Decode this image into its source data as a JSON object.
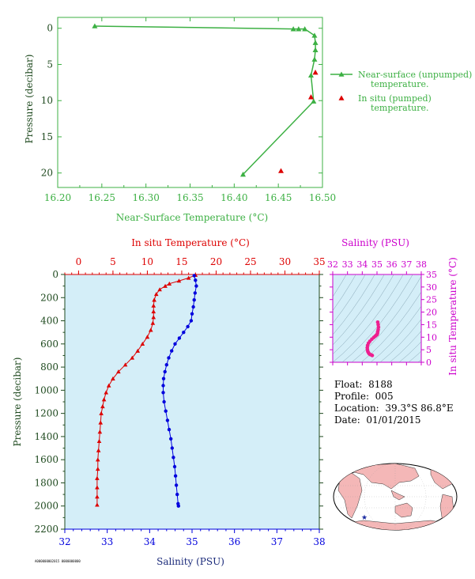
{
  "colors": {
    "green": "#3cb043",
    "red": "#dd0000",
    "blue": "#0000dd",
    "magenta": "#cc00cc",
    "pink": "#ee1f8f",
    "navy": "#1a2a7a",
    "dark_green": "#1f4a1f",
    "panel_fill": "#d4eef8"
  },
  "chart_data": [
    {
      "id": "near_surface",
      "type": "line",
      "xlabel": "Near-Surface Temperature (°C)",
      "ylabel": "Pressure (decibar)",
      "xlim": [
        16.2,
        16.5
      ],
      "ylim": [
        22,
        -1.5
      ],
      "xticks": [
        "16.20",
        "16.25",
        "16.30",
        "16.35",
        "16.40",
        "16.45",
        "16.50"
      ],
      "yticks": [
        "0",
        "5",
        "10",
        "15",
        "20"
      ],
      "series": [
        {
          "name": "Near-surface (unpumped) temperature.",
          "marker": "triangle",
          "line": true,
          "points": [
            [
              16.41,
              20.2
            ],
            [
              16.49,
              10.1
            ],
            [
              16.487,
              6.5
            ],
            [
              16.491,
              4.3
            ],
            [
              16.492,
              3.0
            ],
            [
              16.492,
              2.0
            ],
            [
              16.491,
              1.0
            ],
            [
              16.48,
              0.1
            ],
            [
              16.473,
              0.1
            ],
            [
              16.467,
              0.1
            ],
            [
              16.242,
              -0.3
            ]
          ]
        },
        {
          "name": "In situ (pumped) temperature.",
          "marker": "triangle",
          "line": false,
          "points": [
            [
              16.453,
              19.7
            ],
            [
              16.487,
              9.5
            ],
            [
              16.492,
              6.1
            ]
          ]
        }
      ],
      "legend": {
        "placement": "right",
        "entries": [
          [
            "Near-surface (unpumped)",
            "temperature."
          ],
          [
            "In situ (pumped)",
            "temperature."
          ]
        ]
      }
    },
    {
      "id": "profile",
      "type": "line",
      "ylabel": "Pressure (decibar)",
      "top_xlabel": "In situ Temperature (°C)",
      "bottom_xlabel": "Salinity (PSU)",
      "ylim": [
        2200,
        0
      ],
      "yticks": [
        "0",
        "200",
        "400",
        "600",
        "800",
        "1000",
        "1200",
        "1400",
        "1600",
        "1800",
        "2000",
        "2200"
      ],
      "temp_xlim": [
        -2,
        35
      ],
      "temp_xticks": [
        "0",
        "5",
        "10",
        "15",
        "20",
        "25",
        "30",
        "35"
      ],
      "sal_xlim": [
        32,
        38
      ],
      "sal_xticks": [
        "32",
        "33",
        "34",
        "35",
        "36",
        "37",
        "38"
      ],
      "temperature": [
        [
          17.0,
          5
        ],
        [
          16.0,
          30
        ],
        [
          14.6,
          55
        ],
        [
          13.2,
          80
        ],
        [
          12.6,
          100
        ],
        [
          11.8,
          130
        ],
        [
          11.3,
          170
        ],
        [
          11.0,
          220
        ],
        [
          10.9,
          270
        ],
        [
          10.9,
          320
        ],
        [
          10.9,
          370
        ],
        [
          10.8,
          420
        ],
        [
          10.5,
          480
        ],
        [
          10.0,
          540
        ],
        [
          9.3,
          600
        ],
        [
          8.6,
          660
        ],
        [
          7.8,
          720
        ],
        [
          6.8,
          780
        ],
        [
          5.8,
          840
        ],
        [
          5.0,
          900
        ],
        [
          4.4,
          960
        ],
        [
          4.0,
          1020
        ],
        [
          3.7,
          1080
        ],
        [
          3.5,
          1140
        ],
        [
          3.3,
          1200
        ],
        [
          3.2,
          1280
        ],
        [
          3.1,
          1360
        ],
        [
          3.0,
          1440
        ],
        [
          2.9,
          1520
        ],
        [
          2.8,
          1600
        ],
        [
          2.8,
          1680
        ],
        [
          2.7,
          1760
        ],
        [
          2.7,
          1840
        ],
        [
          2.7,
          1920
        ],
        [
          2.7,
          1990
        ]
      ],
      "salinity": [
        [
          35.05,
          10
        ],
        [
          35.08,
          50
        ],
        [
          35.1,
          100
        ],
        [
          35.07,
          160
        ],
        [
          35.05,
          220
        ],
        [
          35.03,
          280
        ],
        [
          35.0,
          340
        ],
        [
          34.98,
          400
        ],
        [
          34.9,
          450
        ],
        [
          34.8,
          500
        ],
        [
          34.7,
          550
        ],
        [
          34.6,
          600
        ],
        [
          34.52,
          660
        ],
        [
          34.45,
          720
        ],
        [
          34.4,
          780
        ],
        [
          34.36,
          840
        ],
        [
          34.33,
          900
        ],
        [
          34.32,
          960
        ],
        [
          34.32,
          1020
        ],
        [
          34.34,
          1100
        ],
        [
          34.38,
          1180
        ],
        [
          34.42,
          1260
        ],
        [
          34.46,
          1340
        ],
        [
          34.5,
          1420
        ],
        [
          34.53,
          1500
        ],
        [
          34.56,
          1580
        ],
        [
          34.59,
          1660
        ],
        [
          34.61,
          1740
        ],
        [
          34.63,
          1820
        ],
        [
          34.65,
          1900
        ],
        [
          34.67,
          1980
        ],
        [
          34.68,
          2000
        ]
      ]
    },
    {
      "id": "ts_diagram",
      "type": "scatter",
      "xlabel": "Salinity (PSU)",
      "ylabel": "In situ Temperature (°C)",
      "xlim": [
        32,
        38
      ],
      "ylim": [
        0,
        35
      ],
      "xticks": [
        "32",
        "33",
        "34",
        "35",
        "36",
        "37",
        "38"
      ],
      "yticks": [
        "0",
        "5",
        "10",
        "15",
        "20",
        "25",
        "30",
        "35"
      ],
      "points": [
        [
          34.68,
          2.7
        ],
        [
          34.62,
          2.9
        ],
        [
          34.54,
          3.1
        ],
        [
          34.47,
          3.4
        ],
        [
          34.42,
          3.8
        ],
        [
          34.38,
          4.3
        ],
        [
          34.35,
          5.0
        ],
        [
          34.34,
          5.8
        ],
        [
          34.36,
          6.7
        ],
        [
          34.42,
          7.6
        ],
        [
          34.52,
          8.4
        ],
        [
          34.65,
          9.2
        ],
        [
          34.78,
          9.9
        ],
        [
          34.88,
          10.4
        ],
        [
          34.95,
          10.8
        ],
        [
          35.0,
          11.0
        ],
        [
          35.03,
          11.5
        ],
        [
          35.05,
          12.2
        ],
        [
          35.08,
          13.0
        ],
        [
          35.1,
          14.0
        ],
        [
          35.08,
          15.0
        ],
        [
          35.05,
          16.0
        ]
      ]
    }
  ],
  "float_info": {
    "float": "Float:",
    "float_value": "8188",
    "profile": "Profile:",
    "profile_value": "005",
    "location": "Location:",
    "location_value": "39.3°S  86.8°E",
    "date": "Date:",
    "date_value": "01/01/2015"
  },
  "map": {
    "marker_icon": "star-icon"
  },
  "footer": {
    "stamp": "A000000002015 0000000000"
  }
}
